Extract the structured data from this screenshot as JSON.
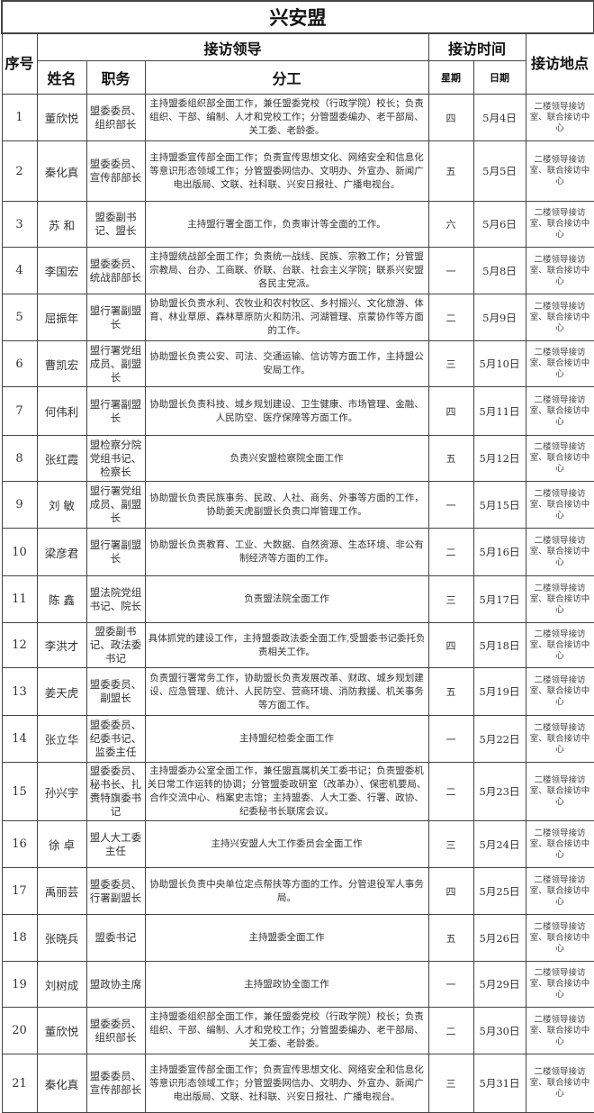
{
  "title": "兴安盟",
  "headers": {
    "seq": "序号",
    "leader": "接访领导",
    "time": "接访时间",
    "place": "接访地点",
    "name": "姓名",
    "position": "职务",
    "duty": "分工",
    "weekday": "星期",
    "date": "日期"
  },
  "rows": [
    {
      "seq": "1",
      "name": "董欣悦",
      "position": "盟委委员、组织部长",
      "duty": "主持盟委组织部全面工作，兼任盟委党校（行政学院）校长；负责组织、干部、编制、人才和党校工作；分管盟委编办、老干部局、关工委、老龄委。",
      "weekday": "四",
      "date": "5月4日",
      "place": "二楼领导接访室、联合接访中心"
    },
    {
      "seq": "2",
      "name": "秦化真",
      "position": "盟委委员、宣传部部长",
      "duty": "主持盟委宣传部全面工作；负责宣传思想文化、网络安全和信息化等意识形态领域工作；分管盟委网信办、文明办、外宣办、新闻广电出版局、文联、社科联、兴安日报社、广播电视台。",
      "weekday": "五",
      "date": "5月5日",
      "place": "二楼领导接访室、联合接访中心"
    },
    {
      "seq": "3",
      "name": "苏 和",
      "position": "盟委副书记、盟长",
      "duty": "主持盟行署全面工作，负责审计等全面的工作。",
      "weekday": "六",
      "date": "5月6日",
      "place": "二楼领导接访室、联合接访中心"
    },
    {
      "seq": "4",
      "name": "李国宏",
      "position": "盟委委员、统战部部长",
      "duty": "主持盟统战部全面工作；负责统一战线、民族、宗教工作；分管盟宗教局、台办、工商联、侨联、台联、社会主义学院；联系兴安盟各民主党派。",
      "weekday": "一",
      "date": "5月8日",
      "place": "二楼领导接访室、联合接访中心"
    },
    {
      "seq": "5",
      "name": "屈振年",
      "position": "盟行署副盟长",
      "duty": "协助盟长负责水利、农牧业和农村牧区、乡村振兴、文化旅游、体育、林业草原、森林草原防火和防汛、河湖管理、京蒙协作等方面的工作。",
      "weekday": "二",
      "date": "5月9日",
      "place": "二楼领导接访室、联合接访中心"
    },
    {
      "seq": "6",
      "name": "曹凯宏",
      "position": "盟行署党组成员、副盟长",
      "duty": "协助盟长负责公安、司法、交通运输、信访等方面工作，主持盟公安局工作。",
      "weekday": "三",
      "date": "5月10日",
      "place": "二楼领导接访室、联合接访中心"
    },
    {
      "seq": "7",
      "name": "何伟利",
      "position": "盟行署副盟长",
      "duty": "协助盟长负责科技、城乡规划建设、卫生健康、市场管理、金融、人民防空、医疗保障等方面工作。",
      "weekday": "四",
      "date": "5月11日",
      "place": "二楼领导接访室、联合接访中心"
    },
    {
      "seq": "8",
      "name": "张红霞",
      "position": "盟检察分院党组书记、检察长",
      "duty": "负责兴安盟检察院全面工作",
      "weekday": "五",
      "date": "5月12日",
      "place": "二楼领导接访室、联合接访中心"
    },
    {
      "seq": "9",
      "name": "刘 敏",
      "position": "盟行署党组成员、副盟长",
      "duty": "协助盟长负责民族事务、民政、人社、商务、外事等方面的工作，协助姜天虎副盟长负责口岸管理工作。",
      "weekday": "一",
      "date": "5月15日",
      "place": "二楼领导接访室、联合接访中心"
    },
    {
      "seq": "10",
      "name": "梁彦君",
      "position": "盟行署副盟长",
      "duty": "协助盟长负责教育、工业、大数据、自然资源、生态环境、非公有制经济等方面的工作。",
      "weekday": "二",
      "date": "5月16日",
      "place": "二楼领导接访室、联合接访中心"
    },
    {
      "seq": "11",
      "name": "陈 鑫",
      "position": "盟法院党组书记、院长",
      "duty": "负责盟法院全面工作",
      "weekday": "三",
      "date": "5月17日",
      "place": "二楼领导接访室、联合接访中心"
    },
    {
      "seq": "12",
      "name": "李洪才",
      "position": "盟委副书记、政法委书记",
      "duty": "具体抓党的建设工作，主持盟委政法委全面工作,受盟委书记委托负责相关工作。",
      "weekday": "四",
      "date": "5月18日",
      "place": "二楼领导接访室、联合接访中心"
    },
    {
      "seq": "13",
      "name": "姜天虎",
      "position": "盟委委员、副盟长",
      "duty": "负责盟行署常务工作，协助盟长负责发展改革、财政、城乡规划建设、应急管理、统计、人民防空、营商环境、消防救援、机关事务等方面工作。",
      "weekday": "五",
      "date": "5月19日",
      "place": "二楼领导接访室、联合接访中心"
    },
    {
      "seq": "14",
      "name": "张立华",
      "position": "盟委委员、纪委书记、监委主任",
      "duty": "主持盟纪检委全面工作",
      "weekday": "一",
      "date": "5月22日",
      "place": "二楼领导接访室、联合接访中心"
    },
    {
      "seq": "15",
      "name": "孙兴宇",
      "position": "盟委委员、秘书长、扎赉特旗委书记",
      "duty": "主持盟委办公室全面工作，兼任盟直属机关工委书记；负责盟委机关日常工作运转的协调；分管盟委政研室（改革办）、保密机要局、合作交流中心、档案史志馆；主持盟委、人大工委、行署、政协、纪委秘书长联席会议。",
      "weekday": "二",
      "date": "5月23日",
      "place": "二楼领导接访室、联合接访中心"
    },
    {
      "seq": "16",
      "name": "徐 卓",
      "position": "盟人大工委主任",
      "duty": "主持兴安盟人大工作委员会全面工作",
      "weekday": "三",
      "date": "5月24日",
      "place": "二楼领导接访室、联合接访中心"
    },
    {
      "seq": "17",
      "name": "禹丽芸",
      "position": "盟委委员、行署副盟长",
      "duty": "协助盟长负责中央单位定点帮扶等方面的工作。分管退役军人事务局。",
      "weekday": "四",
      "date": "5月25日",
      "place": "二楼领导接访室、联合接访中心"
    },
    {
      "seq": "18",
      "name": "张晓兵",
      "position": "盟委书记",
      "duty": "主持盟委全面工作",
      "weekday": "五",
      "date": "5月26日",
      "place": "二楼领导接访室、联合接访中心"
    },
    {
      "seq": "19",
      "name": "刘树成",
      "position": "盟政协主席",
      "duty": "主持盟政协全面工作",
      "weekday": "一",
      "date": "5月29日",
      "place": "二楼领导接访室、联合接访中心"
    },
    {
      "seq": "20",
      "name": "董欣悦",
      "position": "盟委委员、组织部长",
      "duty": "主持盟委组织部全面工作，兼任盟委党校（行政学院）校长；负责组织、干部、编制、人才和党校工作；分管盟委编办、老干部局、关工委、老龄委。",
      "weekday": "二",
      "date": "5月30日",
      "place": "二楼领导接访室、联合接访中心"
    },
    {
      "seq": "21",
      "name": "秦化真",
      "position": "盟委委员、宣传部部长",
      "duty": "主持盟委宣传部全面工作；负责宣传思想文化、网络安全和信息化等意识形态领域工作；分管盟委网信办、文明办、外宣办、新闻广电出版局、文联、社科联、兴安日报社、广播电视台。",
      "weekday": "三",
      "date": "5月31日",
      "place": "二楼领导接访室、联合接访中心"
    }
  ]
}
